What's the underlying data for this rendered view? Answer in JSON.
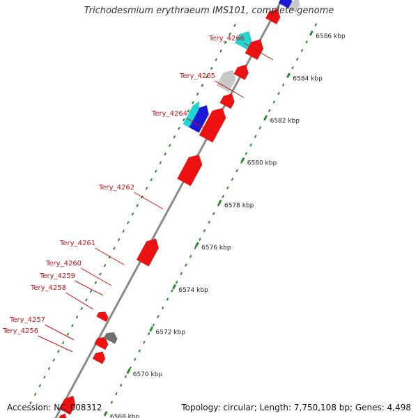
{
  "title": "Trichodesmium erythraeum IMS101, complete genome",
  "footer": {
    "accession": "Accession: NC_008312",
    "summary": "Topology: circular; Length: 7,750,108 bp; Genes: 4,498"
  },
  "colors": {
    "forward_gene": "#ee1111",
    "other": "#c8c8c8",
    "dark_gene": "#707070",
    "cyan": "#22d4d4",
    "blue": "#1a1ad6",
    "backbone": "#8a8a8a",
    "tick": "#2a8a2a",
    "label": "#cc1111"
  },
  "scale": {
    "unit": "kbp",
    "ticks": [
      {
        "label": "6568 kbp",
        "value": 6568
      },
      {
        "label": "6570 kbp",
        "value": 6570
      },
      {
        "label": "6572 kbp",
        "value": 6572
      },
      {
        "label": "6574 kbp",
        "value": 6574
      },
      {
        "label": "6576 kbp",
        "value": 6576
      },
      {
        "label": "6578 kbp",
        "value": 6578
      },
      {
        "label": "6580 kbp",
        "value": 6580
      },
      {
        "label": "6582 kbp",
        "value": 6582
      },
      {
        "label": "6584 kbp",
        "value": 6584
      },
      {
        "label": "6586 kbp",
        "value": 6586
      }
    ]
  },
  "gene_labels": [
    {
      "name": "Tery_4256"
    },
    {
      "name": "Tery_4257"
    },
    {
      "name": "Tery_4258"
    },
    {
      "name": "Tery_4259"
    },
    {
      "name": "Tery_4260"
    },
    {
      "name": "Tery_4261"
    },
    {
      "name": "Tery_4262"
    },
    {
      "name": "Tery_4264"
    },
    {
      "name": "Tery_4265"
    },
    {
      "name": "Tery_4266"
    }
  ]
}
